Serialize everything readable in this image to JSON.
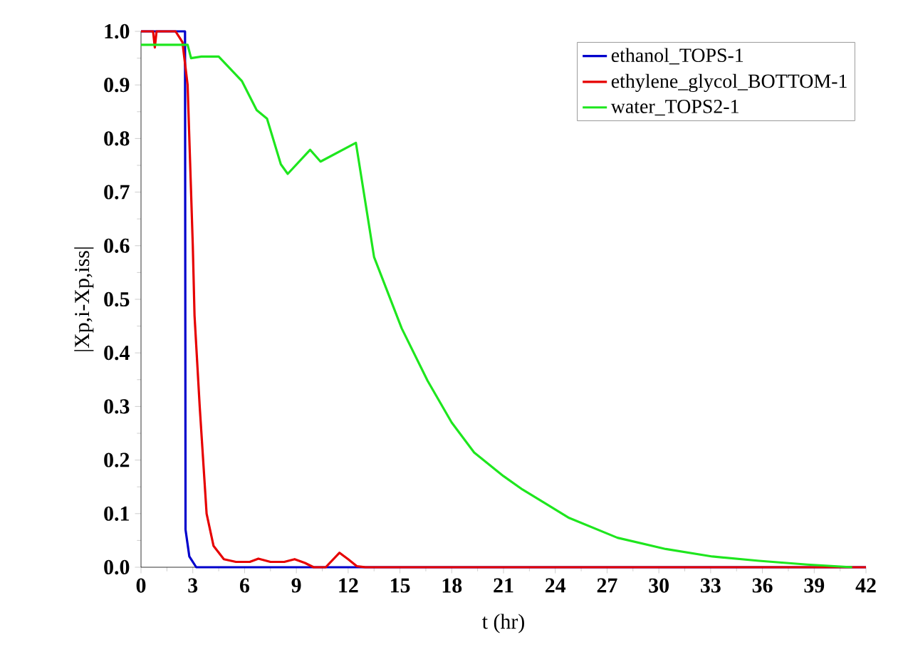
{
  "chart_data": {
    "type": "line",
    "xlabel": "t (hr)",
    "ylabel": "|Xp,i-Xp,iss|",
    "xlim": [
      0,
      42
    ],
    "ylim": [
      0,
      1.0
    ],
    "xticks": [
      0,
      3,
      6,
      9,
      12,
      15,
      18,
      21,
      24,
      27,
      30,
      33,
      36,
      39,
      42
    ],
    "yticks": [
      {
        "value": 0,
        "label": "0.0"
      },
      {
        "value": 0.1,
        "label": "0.1"
      },
      {
        "value": 0.2,
        "label": "0.2"
      },
      {
        "value": 0.3,
        "label": "0.3"
      },
      {
        "value": 0.4,
        "label": "0.4"
      },
      {
        "value": 0.5,
        "label": "0.5"
      },
      {
        "value": 0.6,
        "label": "0.6"
      },
      {
        "value": 0.7,
        "label": "0.7"
      },
      {
        "value": 0.8,
        "label": "0.8"
      },
      {
        "value": 0.9,
        "label": "0.9"
      },
      {
        "value": 1.0,
        "label": "1.0"
      }
    ],
    "legend": "top right",
    "grid": false,
    "marker": "none",
    "line_style": "solid",
    "series": [
      {
        "name": "ethanol_TOPS-1",
        "color": "#0000cc",
        "x": [
          0,
          2.55,
          2.58,
          2.8,
          3.2,
          42
        ],
        "values": [
          1.0,
          1.0,
          0.07,
          0.02,
          0,
          0
        ]
      },
      {
        "name": "ethylene_glycol_BOTTOM-1",
        "color": "#e60000",
        "x": [
          0,
          0.7,
          0.8,
          0.9,
          2.0,
          2.4,
          2.7,
          3.0,
          3.1,
          3.4,
          3.8,
          4.2,
          4.8,
          5.5,
          6.3,
          6.8,
          7.5,
          8.3,
          8.9,
          9.5,
          10.0,
          10.7,
          11.5,
          12.0,
          12.5,
          13.0,
          42
        ],
        "values": [
          1.0,
          1.0,
          0.97,
          1.0,
          1.0,
          0.98,
          0.9,
          0.6,
          0.47,
          0.3,
          0.1,
          0.04,
          0.015,
          0.01,
          0.01,
          0.016,
          0.01,
          0.01,
          0.015,
          0.008,
          0,
          0,
          0.027,
          0.015,
          0.002,
          0,
          0
        ]
      },
      {
        "name": "water_TOPS2-1",
        "color": "#1ee61e",
        "x": [
          0,
          2.7,
          2.9,
          3.5,
          4.5,
          5.85,
          6.7,
          7.3,
          8.1,
          8.5,
          9.8,
          10.4,
          12.45,
          13.5,
          15.1,
          16.6,
          18.0,
          19.3,
          21.0,
          22.1,
          24.8,
          27.6,
          30.4,
          33.1,
          35.8,
          38.6,
          41.2
        ],
        "values": [
          0.975,
          0.975,
          0.95,
          0.953,
          0.953,
          0.907,
          0.853,
          0.837,
          0.752,
          0.734,
          0.779,
          0.757,
          0.792,
          0.579,
          0.446,
          0.348,
          0.27,
          0.214,
          0.17,
          0.145,
          0.092,
          0.055,
          0.034,
          0.02,
          0.012,
          0.005,
          0
        ]
      }
    ]
  }
}
